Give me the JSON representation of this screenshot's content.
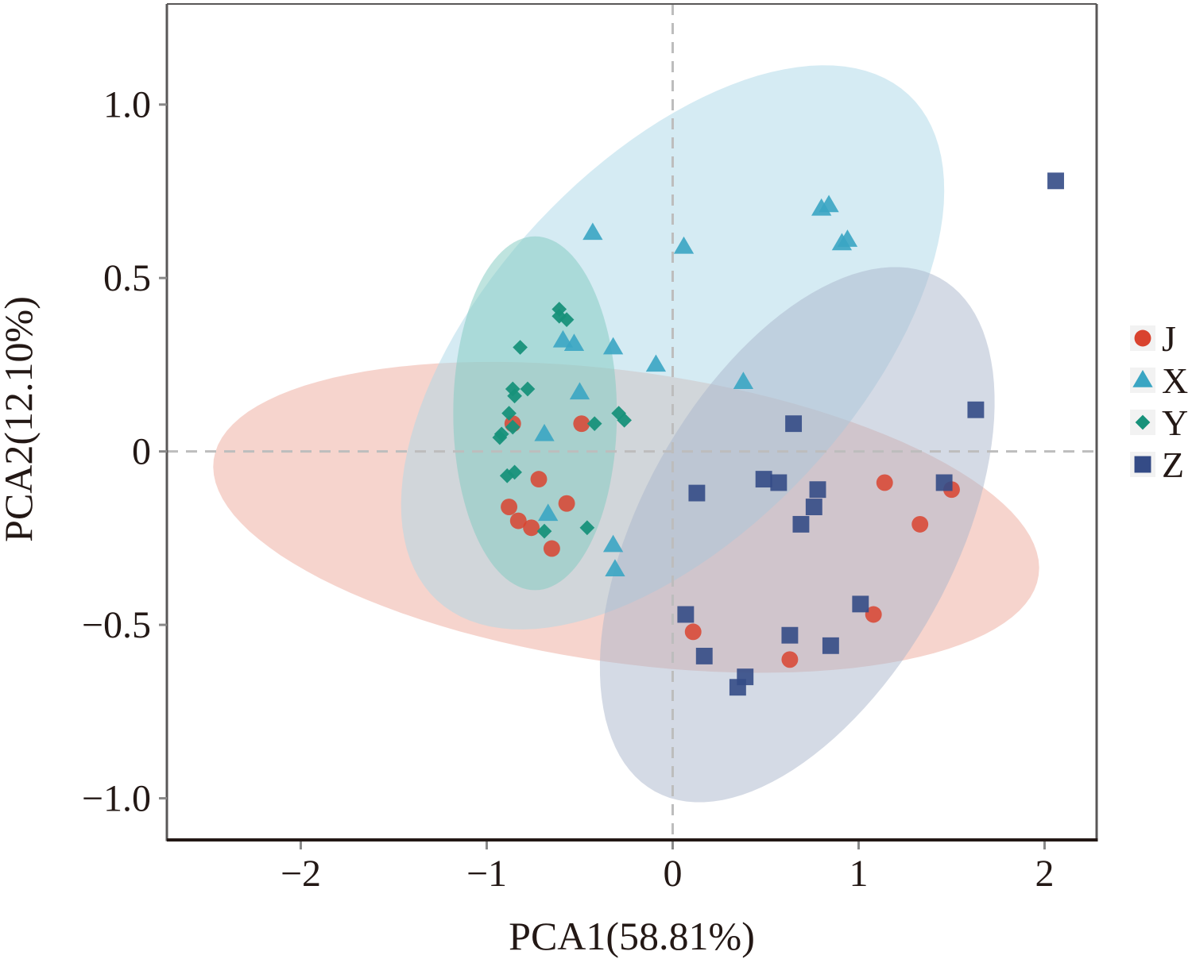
{
  "chart_data": {
    "type": "scatter",
    "title": "",
    "xlabel": "PCA1(58.81%)",
    "ylabel": "PCA2(12.10%)",
    "xlim": [
      -2.72,
      2.28
    ],
    "ylim": [
      -1.12,
      1.29
    ],
    "xticks": [
      {
        "value": -2,
        "label": "−2"
      },
      {
        "value": -1,
        "label": "−1"
      },
      {
        "value": 0,
        "label": "0"
      },
      {
        "value": 1,
        "label": "1"
      },
      {
        "value": 2,
        "label": "2"
      }
    ],
    "yticks": [
      {
        "value": 1.0,
        "label": "1.0"
      },
      {
        "value": 0.5,
        "label": "0.5"
      },
      {
        "value": 0,
        "label": "0"
      },
      {
        "value": -0.5,
        "label": "−0.5"
      },
      {
        "value": -1.0,
        "label": "−1.0"
      }
    ],
    "grid": false,
    "reference_lines": {
      "x": 0,
      "y": 0,
      "style": "dashed"
    },
    "legend": {
      "position": "right",
      "entries": [
        "J",
        "X",
        "Y",
        "Z"
      ]
    },
    "series": [
      {
        "name": "J",
        "marker": "circle",
        "color": "#d9432f",
        "ellipse": {
          "cx": -0.25,
          "cy": -0.19,
          "rx": 2.24,
          "ry": 0.42,
          "angle": -8,
          "fill": "#eeaa9c"
        },
        "points": [
          [
            1.14,
            -0.09
          ],
          [
            1.5,
            -0.11
          ],
          [
            1.33,
            -0.21
          ],
          [
            0.11,
            -0.52
          ],
          [
            0.63,
            -0.6
          ],
          [
            1.08,
            -0.47
          ],
          [
            -0.86,
            0.08
          ],
          [
            -0.49,
            0.08
          ],
          [
            -0.72,
            -0.08
          ],
          [
            -0.88,
            -0.16
          ],
          [
            -0.83,
            -0.2
          ],
          [
            -0.76,
            -0.22
          ],
          [
            -0.57,
            -0.15
          ],
          [
            -0.65,
            -0.28
          ]
        ]
      },
      {
        "name": "X",
        "marker": "triangle",
        "color": "#3aa5c3",
        "ellipse": {
          "cx": 0.0,
          "cy": 0.3,
          "rx": 1.86,
          "ry": 0.53,
          "angle": 47,
          "fill": "#acd7e7"
        },
        "points": [
          [
            -0.43,
            0.63
          ],
          [
            0.06,
            0.59
          ],
          [
            0.8,
            0.7
          ],
          [
            0.84,
            0.71
          ],
          [
            0.91,
            0.6
          ],
          [
            0.94,
            0.61
          ],
          [
            -0.59,
            0.32
          ],
          [
            -0.53,
            0.31
          ],
          [
            -0.32,
            0.3
          ],
          [
            -0.09,
            0.25
          ],
          [
            0.38,
            0.2
          ],
          [
            -0.5,
            0.17
          ],
          [
            -0.69,
            0.05
          ],
          [
            -0.67,
            -0.18
          ],
          [
            -0.32,
            -0.27
          ],
          [
            -0.31,
            -0.34
          ]
        ]
      },
      {
        "name": "Y",
        "marker": "diamond",
        "color": "#17917a",
        "ellipse": {
          "cx": -0.74,
          "cy": 0.11,
          "rx": 0.44,
          "ry": 0.51,
          "angle": 0,
          "fill": "#7fc9c0"
        },
        "points": [
          [
            -0.61,
            0.41
          ],
          [
            -0.61,
            0.39
          ],
          [
            -0.57,
            0.38
          ],
          [
            -0.82,
            0.3
          ],
          [
            -0.86,
            0.18
          ],
          [
            -0.85,
            0.16
          ],
          [
            -0.78,
            0.18
          ],
          [
            -0.88,
            0.11
          ],
          [
            -0.86,
            0.07
          ],
          [
            -0.92,
            0.05
          ],
          [
            -0.93,
            0.04
          ],
          [
            -0.42,
            0.08
          ],
          [
            -0.29,
            0.11
          ],
          [
            -0.26,
            0.09
          ],
          [
            -0.89,
            -0.07
          ],
          [
            -0.85,
            -0.06
          ],
          [
            -0.69,
            -0.23
          ],
          [
            -0.46,
            -0.22
          ]
        ]
      },
      {
        "name": "Z",
        "marker": "square",
        "color": "#344b86",
        "ellipse": {
          "cx": 0.67,
          "cy": -0.24,
          "rx": 1.58,
          "ry": 0.45,
          "angle": 61,
          "fill": "#aab6cc"
        },
        "points": [
          [
            2.06,
            0.78
          ],
          [
            1.63,
            0.12
          ],
          [
            0.65,
            0.08
          ],
          [
            0.13,
            -0.12
          ],
          [
            0.49,
            -0.08
          ],
          [
            0.57,
            -0.09
          ],
          [
            0.78,
            -0.11
          ],
          [
            0.76,
            -0.16
          ],
          [
            0.69,
            -0.21
          ],
          [
            1.46,
            -0.09
          ],
          [
            0.07,
            -0.47
          ],
          [
            0.17,
            -0.59
          ],
          [
            0.63,
            -0.53
          ],
          [
            0.85,
            -0.56
          ],
          [
            1.01,
            -0.44
          ],
          [
            0.39,
            -0.65
          ],
          [
            0.35,
            -0.68
          ]
        ]
      }
    ]
  }
}
